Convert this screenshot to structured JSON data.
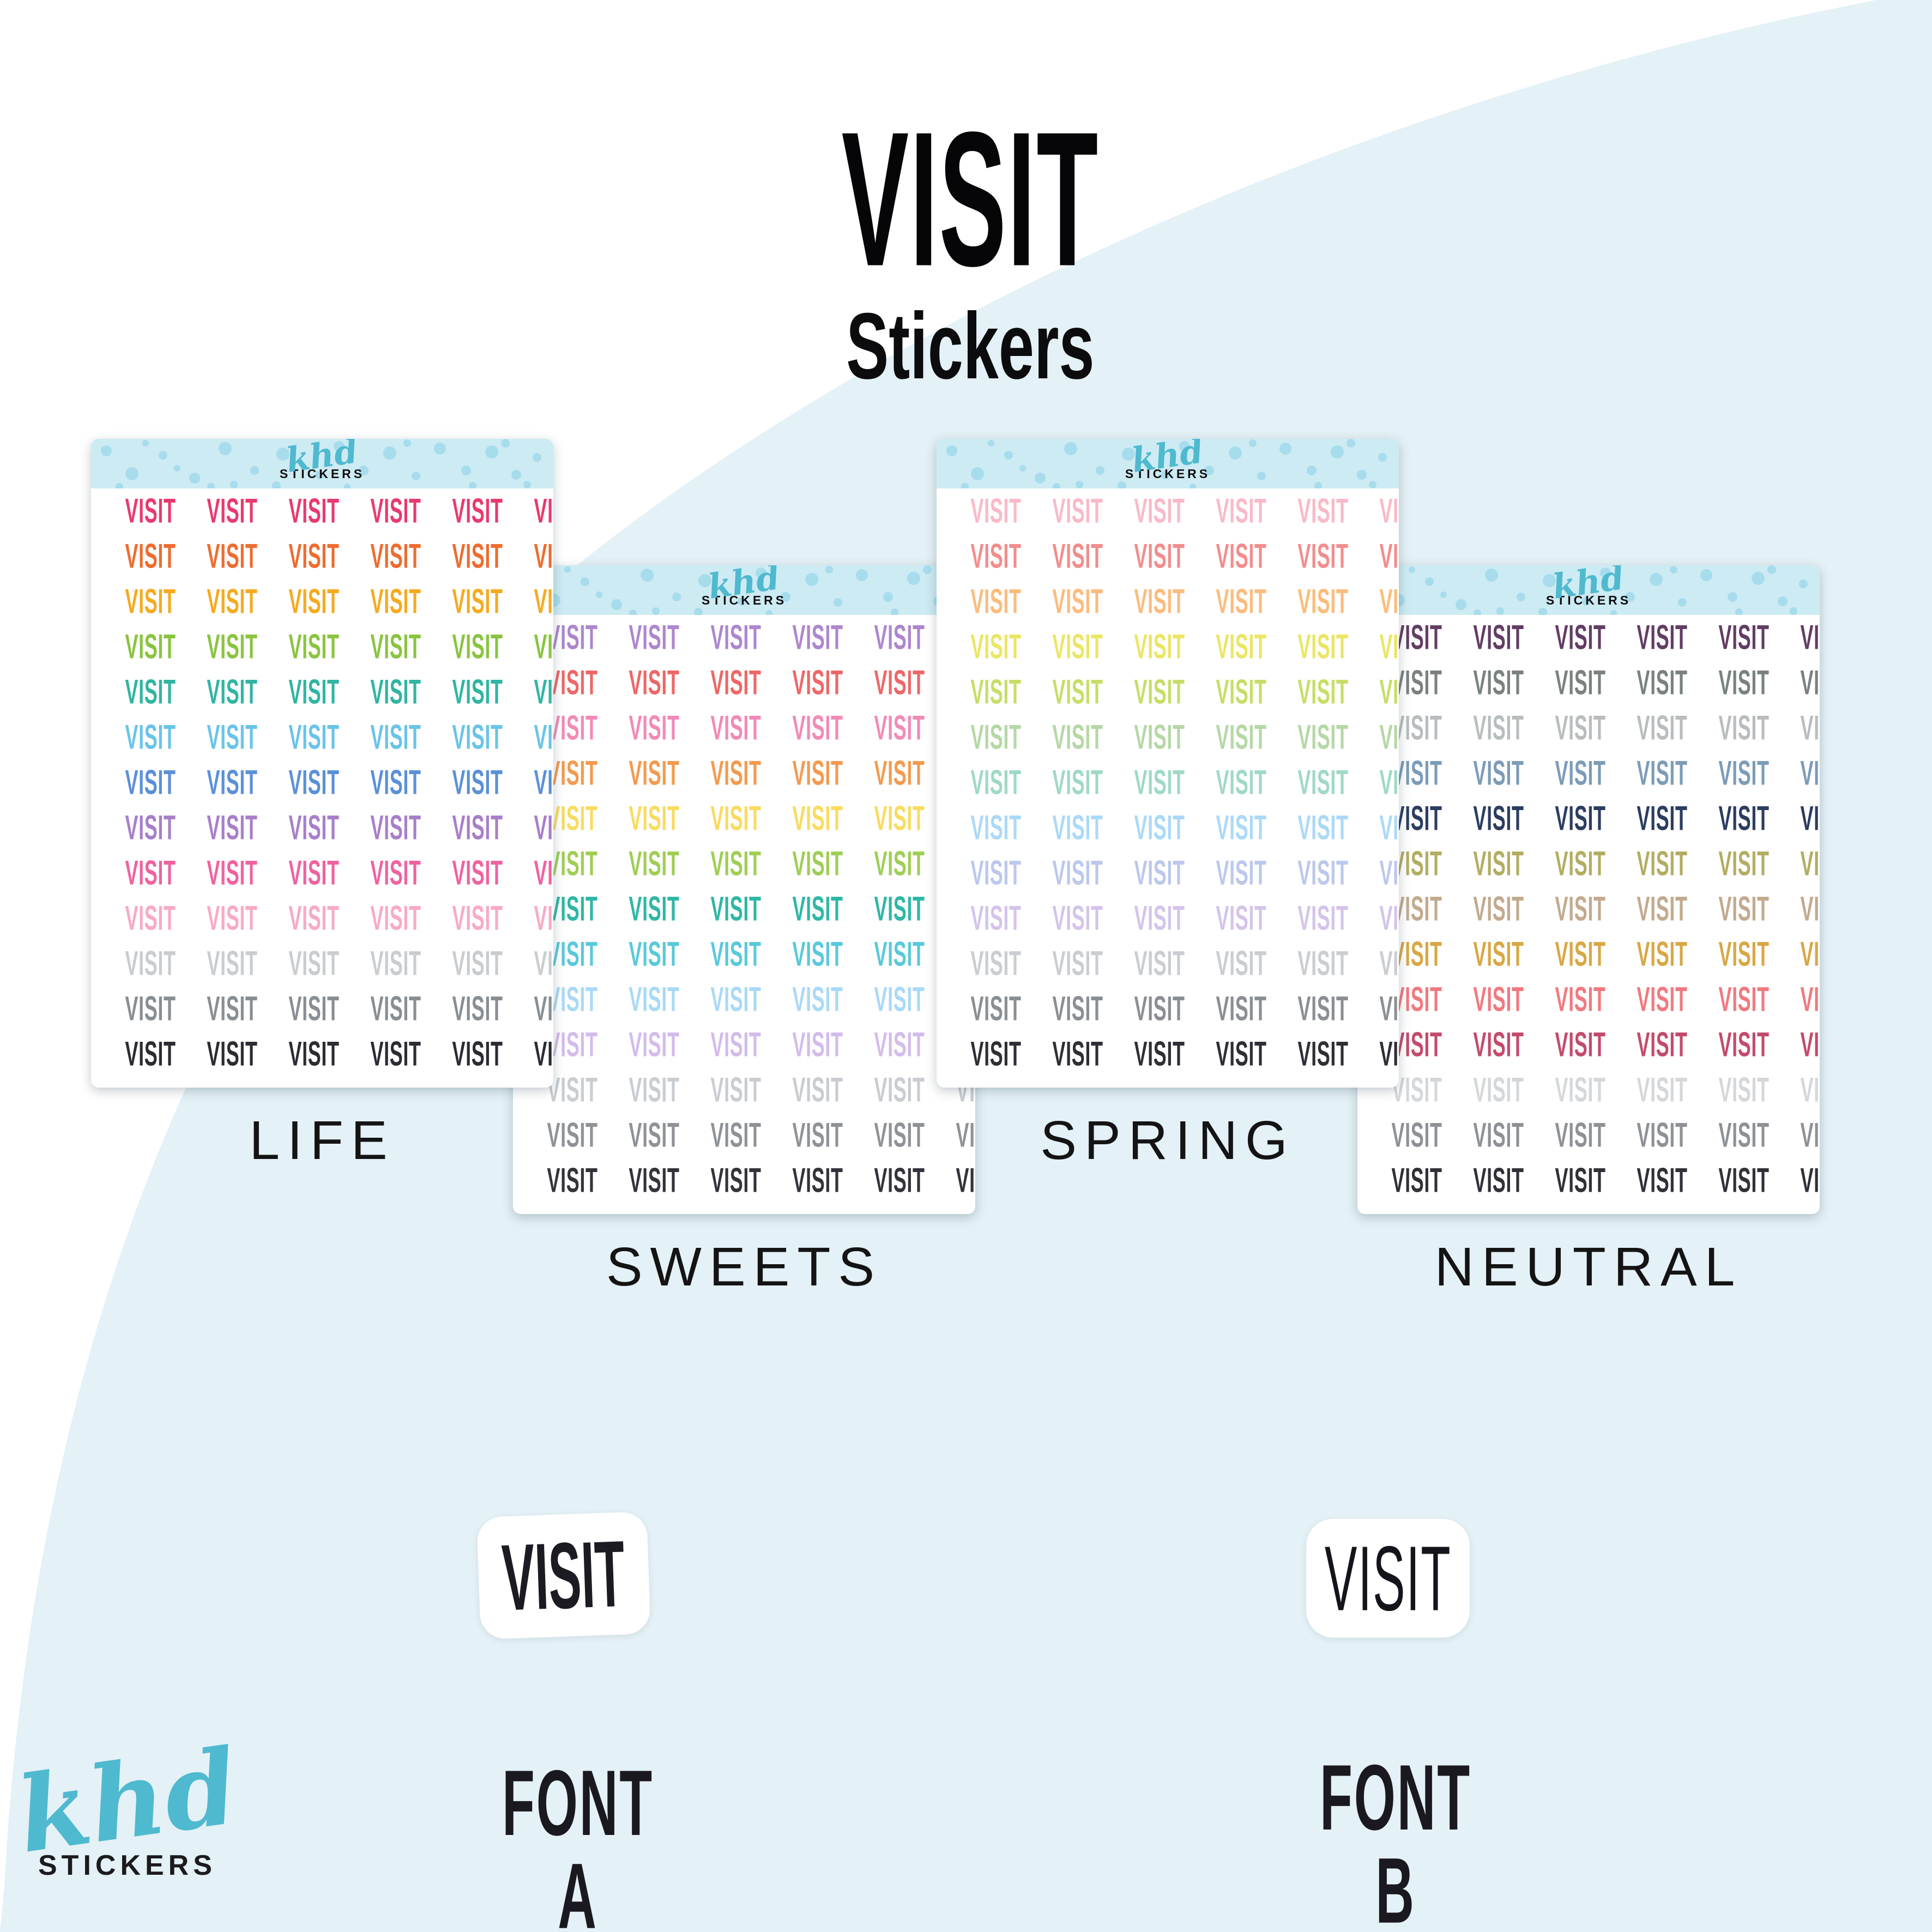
{
  "title": {
    "main": "VISIT",
    "subtitle": "Stickers"
  },
  "brand": {
    "name": "khd",
    "tagline": "STICKERS",
    "accent_color": "#4fb9cf"
  },
  "sticker_word": "VISIT",
  "columns_per_row": 6,
  "background": {
    "blob_color": "#e4f1f6",
    "band_color": "#cdebf3",
    "dot_color": "#a7dcec"
  },
  "sheets": [
    {
      "label": "LIFE",
      "colors": [
        "#e83a6e",
        "#ee6c30",
        "#f5aa20",
        "#8ac440",
        "#30b5a3",
        "#69c4e8",
        "#5b90d8",
        "#a87fc8",
        "#f062a0",
        "#f8aac6",
        "#c9cdd0",
        "#898e93",
        "#2b2b33"
      ]
    },
    {
      "label": "SWEETS",
      "colors": [
        "#ad86cd",
        "#ee6767",
        "#f28ab8",
        "#f39a4f",
        "#f9db5f",
        "#9fce55",
        "#2fb7a6",
        "#59c9da",
        "#a9d9f7",
        "#d3bcec",
        "#c9cdd1",
        "#8f9397",
        "#33333b"
      ]
    },
    {
      "label": "SPRING",
      "colors": [
        "#f9bac7",
        "#f28d8d",
        "#fbbc7d",
        "#ebe664",
        "#c6de67",
        "#b5d8a6",
        "#9fd9c4",
        "#abd9f8",
        "#bcc8ec",
        "#d4c4ea",
        "#cacdd1",
        "#8b8f93",
        "#2e2e36"
      ]
    },
    {
      "label": "NEUTRAL",
      "colors": [
        "#623d64",
        "#7a8181",
        "#b9bdbf",
        "#7c9cb8",
        "#2c3d60",
        "#b3ad63",
        "#c2aa8e",
        "#d8a846",
        "#f07a80",
        "#c34b6b",
        "#d5d8da",
        "#8e9296",
        "#303038"
      ]
    }
  ],
  "font_samples": [
    {
      "label": "FONT A",
      "word": "VISIT"
    },
    {
      "label": "FONT B",
      "word": "VISIT"
    }
  ]
}
